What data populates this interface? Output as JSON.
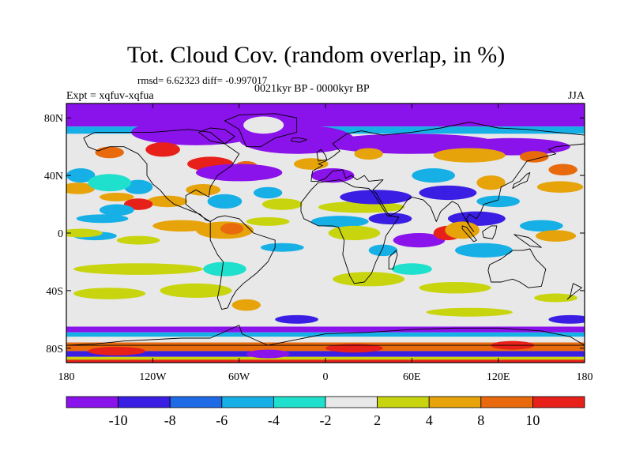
{
  "title": "Tot. Cloud Cov. (random overlap, in %)",
  "stats": "rmsd= 6.62323 diff= -0.997017",
  "period": "0021kyr BP - 0000kyr BP",
  "experiment": "Expt = xqfuv-xqfua",
  "season": "JJA",
  "map": {
    "lat_range": [
      -90,
      90
    ],
    "lon_range": [
      -180,
      180
    ],
    "lat_ticks": [
      "80N",
      "40N",
      "0",
      "40S",
      "80S"
    ],
    "lat_tick_values": [
      80,
      40,
      0,
      -40,
      -80
    ],
    "lon_ticks": [
      "180",
      "120W",
      "60W",
      "0",
      "60E",
      "120E",
      "180"
    ],
    "lon_tick_values": [
      -180,
      -120,
      -60,
      0,
      60,
      120,
      180
    ]
  },
  "colorbar": {
    "labels": [
      "-10",
      "-8",
      "-6",
      "-4",
      "-2",
      "2",
      "4",
      "8",
      "10"
    ],
    "colors": [
      "#8a12ea",
      "#3a1ee4",
      "#1f6ae6",
      "#17b0e6",
      "#1ee0cc",
      "#e8e8e8",
      "#c8d50e",
      "#e6a30a",
      "#e86a0c",
      "#e8201a"
    ]
  },
  "field_colors": {
    "strong_neg": "#8a12ea",
    "neg": "#3a1ee4",
    "mid_neg": "#1f6ae6",
    "weak_neg": "#17b0e6",
    "slight_neg": "#1ee0cc",
    "neutral": "#e8e8e8",
    "slight_pos": "#c8d50e",
    "pos": "#e6a30a",
    "strong_pos": "#e86a0c",
    "max_pos": "#e8201a",
    "coast": "#000000"
  }
}
